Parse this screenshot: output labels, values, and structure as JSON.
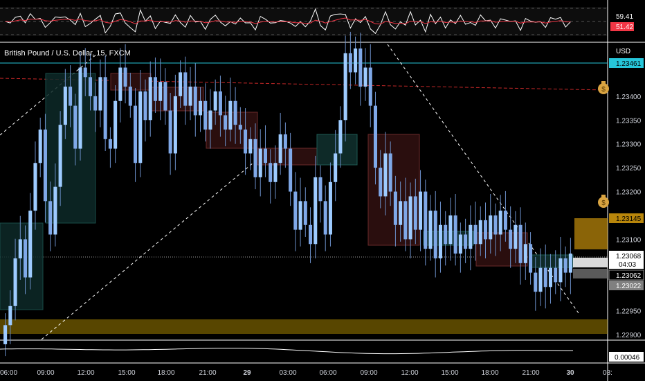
{
  "symbol": {
    "title": "British Pound / U.S. Dollar, 15, FXCM"
  },
  "currency_label": "USD",
  "rsi": {
    "value_label": "59.41",
    "ma_label": "51.42",
    "series_color": "#ffffff",
    "ma_color": "#f23645"
  },
  "price_axis": {
    "ticks": [
      "1.23400",
      "1.23350",
      "1.23300",
      "1.23250",
      "1.23200",
      "1.23100",
      "1.22950",
      "1.22900"
    ],
    "tick_values": [
      1.234,
      1.2335,
      1.233,
      1.2325,
      1.232,
      1.231,
      1.2295,
      1.229
    ]
  },
  "price_tags": {
    "level_top": {
      "text": "1.23461",
      "value": 1.23461,
      "color": "#26c6da"
    },
    "zone_upper": {
      "text": "1.23145",
      "value": 1.23145,
      "color": "#b8860b"
    },
    "last": {
      "text": "1.23068",
      "countdown": "04:03",
      "value": 1.23068
    },
    "bid": {
      "text": "1.23062",
      "value": 1.23062
    },
    "gray": {
      "text": "1.23022",
      "value": 1.23022
    }
  },
  "volume": {
    "label": "0.00046"
  },
  "time_axis": {
    "labels": [
      "06:00",
      "09:00",
      "12:00",
      "15:00",
      "18:00",
      "21:00",
      "29",
      "03:00",
      "06:00",
      "09:00",
      "12:00",
      "15:00",
      "18:00",
      "21:00",
      "30",
      "03:"
    ],
    "bold": [
      false,
      false,
      false,
      false,
      false,
      false,
      true,
      false,
      false,
      false,
      false,
      false,
      false,
      false,
      true,
      false
    ]
  },
  "chart_data": {
    "type": "candlestick",
    "title": "British Pound / U.S. Dollar, 15, FXCM",
    "y_unit": "USD",
    "ylim": [
      1.2289,
      1.235
    ],
    "candles_close": [
      1.2292,
      1.2296,
      1.2306,
      1.231,
      1.2302,
      1.2316,
      1.2326,
      1.2333,
      1.2318,
      1.2311,
      1.2321,
      1.2334,
      1.2342,
      1.2338,
      1.2329,
      1.2346,
      1.2344,
      1.234,
      1.2337,
      1.2344,
      1.2331,
      1.2329,
      1.2339,
      1.2346,
      1.2342,
      1.2338,
      1.2326,
      1.2341,
      1.2335,
      1.2344,
      1.2339,
      1.2343,
      1.2337,
      1.2328,
      1.234,
      1.2345,
      1.2338,
      1.2342,
      1.2336,
      1.2339,
      1.2333,
      1.2337,
      1.2341,
      1.2336,
      1.2333,
      1.2339,
      1.2334,
      1.2333,
      1.2328,
      1.2331,
      1.2323,
      1.2329,
      1.2326,
      1.2322,
      1.2326,
      1.2332,
      1.2329,
      1.232,
      1.2312,
      1.2318,
      1.2313,
      1.2309,
      1.2323,
      1.2318,
      1.2311,
      1.2322,
      1.2328,
      1.2335,
      1.2349,
      1.2345,
      1.235,
      1.2342,
      1.2346,
      1.2338,
      1.2325,
      1.2319,
      1.2328,
      1.232,
      1.2313,
      1.2318,
      1.231,
      1.2319,
      1.2312,
      1.232,
      1.2308,
      1.2316,
      1.2306,
      1.2313,
      1.2309,
      1.2315,
      1.2307,
      1.2311,
      1.2308,
      1.2313,
      1.2309,
      1.2314,
      1.231,
      1.2315,
      1.2311,
      1.2316,
      1.2312,
      1.2308,
      1.2313,
      1.2305,
      1.2309,
      1.2303,
      1.2299,
      1.2304,
      1.23,
      1.2304,
      1.2301,
      1.2306,
      1.2303,
      1.2307
    ],
    "rsi_value": 59.41,
    "rsi_ma": 51.42,
    "volume_last": 0.00046,
    "zones": [
      {
        "name": "supply",
        "from": 1.23095,
        "to": 1.23145
      },
      {
        "name": "demand",
        "from": 1.2292,
        "to": 1.22945
      }
    ],
    "levels": [
      1.23461,
      1.2341
    ]
  }
}
